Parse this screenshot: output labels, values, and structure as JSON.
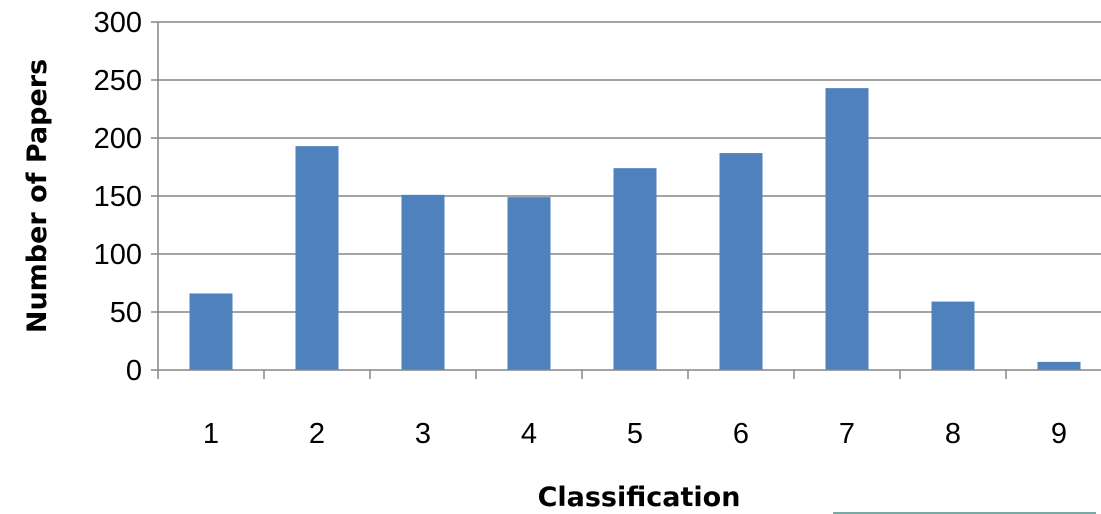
{
  "chart_data": {
    "type": "bar",
    "categories": [
      "1",
      "2",
      "3",
      "4",
      "5",
      "6",
      "7",
      "8",
      "9"
    ],
    "values": [
      66,
      193,
      151,
      149,
      174,
      187,
      243,
      59,
      7
    ],
    "xlabel": "Classification",
    "ylabel": "Number of Papers",
    "ylim": [
      0,
      300
    ],
    "yticks": [
      "0",
      "50",
      "100",
      "150",
      "200",
      "250",
      "300"
    ],
    "grid": true,
    "legend": "none",
    "colors": {
      "bar": "#4F81BD"
    }
  }
}
